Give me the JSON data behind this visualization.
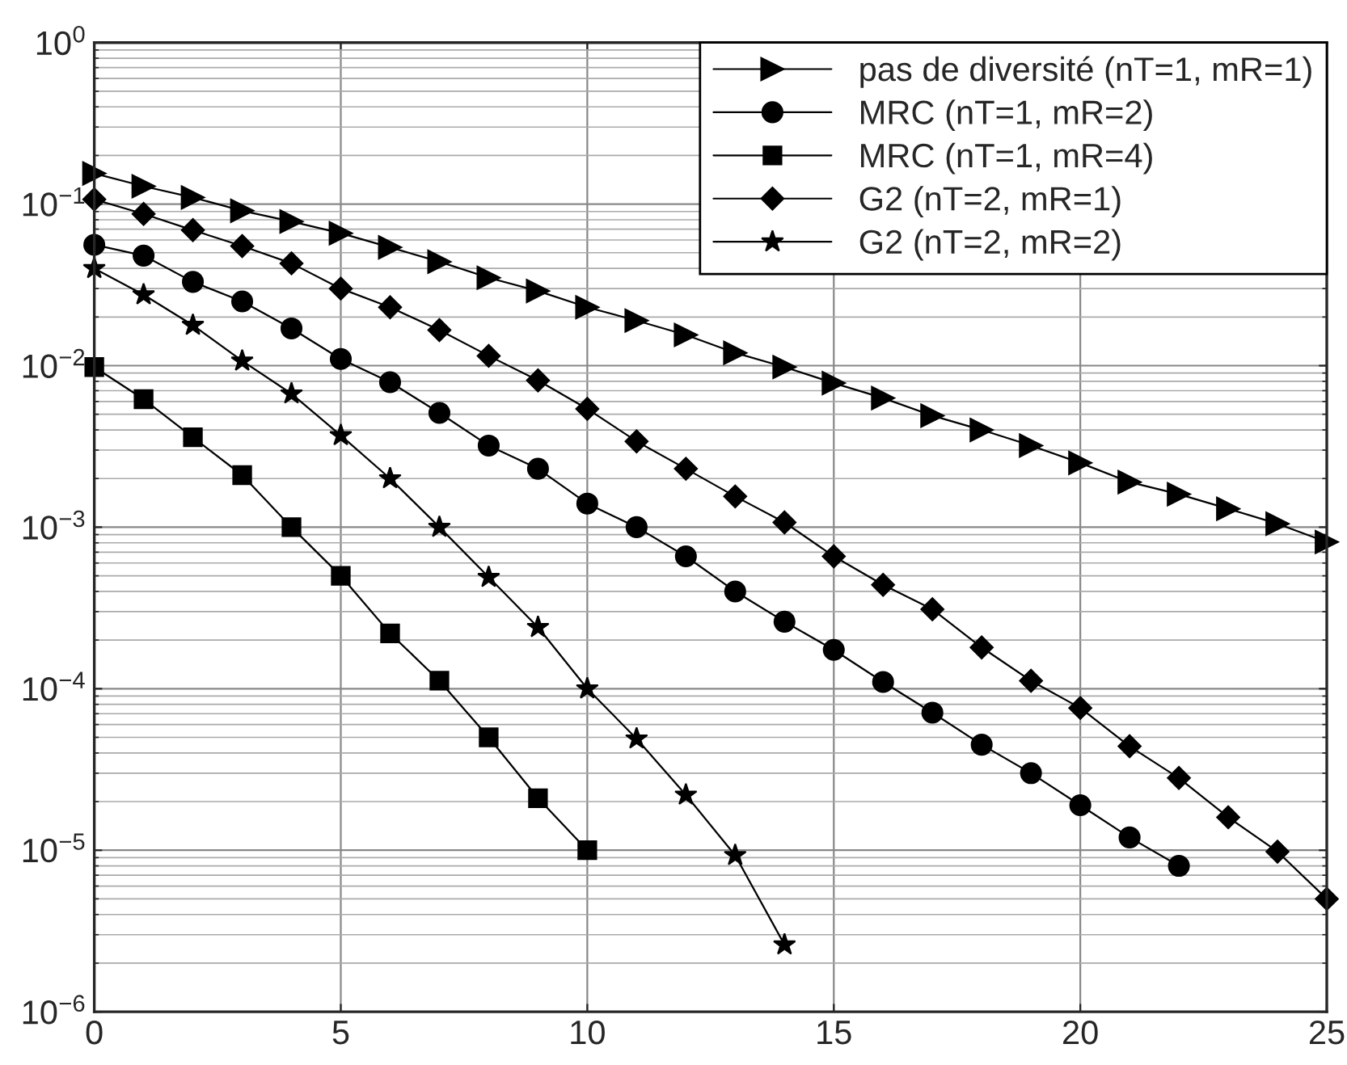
{
  "chart_data": {
    "type": "line",
    "x": [
      0,
      1,
      2,
      3,
      4,
      5,
      6,
      7,
      8,
      9,
      10,
      11,
      12,
      13,
      14,
      15,
      16,
      17,
      18,
      19,
      20,
      21,
      22,
      23,
      24,
      25
    ],
    "series": [
      {
        "name": "pas de diversité (nT=1, mR=1)",
        "color": "#000000",
        "marker": "triangle",
        "values": [
          0.155,
          0.129,
          0.11,
          0.091,
          0.078,
          0.066,
          0.054,
          0.044,
          0.035,
          0.029,
          0.023,
          0.019,
          0.0155,
          0.012,
          0.0098,
          0.0078,
          0.0063,
          0.0049,
          0.004,
          0.0032,
          0.0025,
          0.0019,
          0.0016,
          0.0013,
          0.00105,
          0.00081
        ]
      },
      {
        "name": "MRC (nT=1, mR=2)",
        "color": "#000000",
        "marker": "circle",
        "values": [
          0.056,
          0.048,
          0.033,
          0.025,
          0.017,
          0.011,
          0.0079,
          0.0051,
          0.0032,
          0.0023,
          0.0014,
          0.001,
          0.00066,
          0.0004,
          0.00026,
          0.000174,
          0.00011,
          7.1e-05,
          4.5e-05,
          3e-05,
          1.9e-05,
          1.2e-05,
          8e-06,
          null,
          null,
          null
        ]
      },
      {
        "name": "MRC (nT=1, mR=4)",
        "color": "#000000",
        "marker": "square",
        "values": [
          0.0098,
          0.0062,
          0.0036,
          0.0021,
          0.001,
          0.0005,
          0.00022,
          0.000112,
          5e-05,
          2.1e-05,
          1e-05,
          null,
          null,
          null,
          null,
          null,
          null,
          null,
          null,
          null,
          null,
          null,
          null,
          null,
          null,
          null
        ]
      },
      {
        "name": "G2 (nT=2, mR=1)",
        "color": "#000000",
        "marker": "diamond",
        "values": [
          0.107,
          0.087,
          0.069,
          0.055,
          0.043,
          0.03,
          0.023,
          0.0166,
          0.0115,
          0.0081,
          0.0054,
          0.0034,
          0.0023,
          0.00155,
          0.00107,
          0.00066,
          0.00044,
          0.00031,
          0.00018,
          0.000112,
          7.6e-05,
          4.4e-05,
          2.8e-05,
          1.6e-05,
          9.8e-06,
          5e-06
        ]
      },
      {
        "name": "G2 (nT=2, mR=2)",
        "color": "#000000",
        "marker": "star",
        "values": [
          0.04,
          0.0275,
          0.0178,
          0.0107,
          0.0067,
          0.0037,
          0.002,
          0.001,
          0.00049,
          0.00024,
          0.0001,
          4.9e-05,
          2.2e-05,
          9.3e-06,
          2.6e-06,
          null,
          null,
          null,
          null,
          null,
          null,
          null,
          null,
          null,
          null,
          null
        ]
      }
    ],
    "log": "y",
    "xlim": [
      0,
      25
    ],
    "xticks": [
      0,
      5,
      10,
      15,
      20,
      25
    ],
    "ylim": [
      1e-06,
      1
    ],
    "yticks": [
      {
        "value": 1e-06,
        "label": "10$^{−6}$"
      },
      {
        "value": 1e-05,
        "label": "10$^{−5}$"
      },
      {
        "value": 0.0001,
        "label": "10$^{−4}$"
      },
      {
        "value": 0.001,
        "label": "10$^{−3}$"
      },
      {
        "value": 0.01,
        "label": "10$^{−2}$"
      },
      {
        "value": 0.1,
        "label": "10$^{−1}$"
      },
      {
        "value": 1,
        "label": "10$^{0}$"
      }
    ],
    "grid": true,
    "legend": "top right",
    "line_style": "solid"
  }
}
